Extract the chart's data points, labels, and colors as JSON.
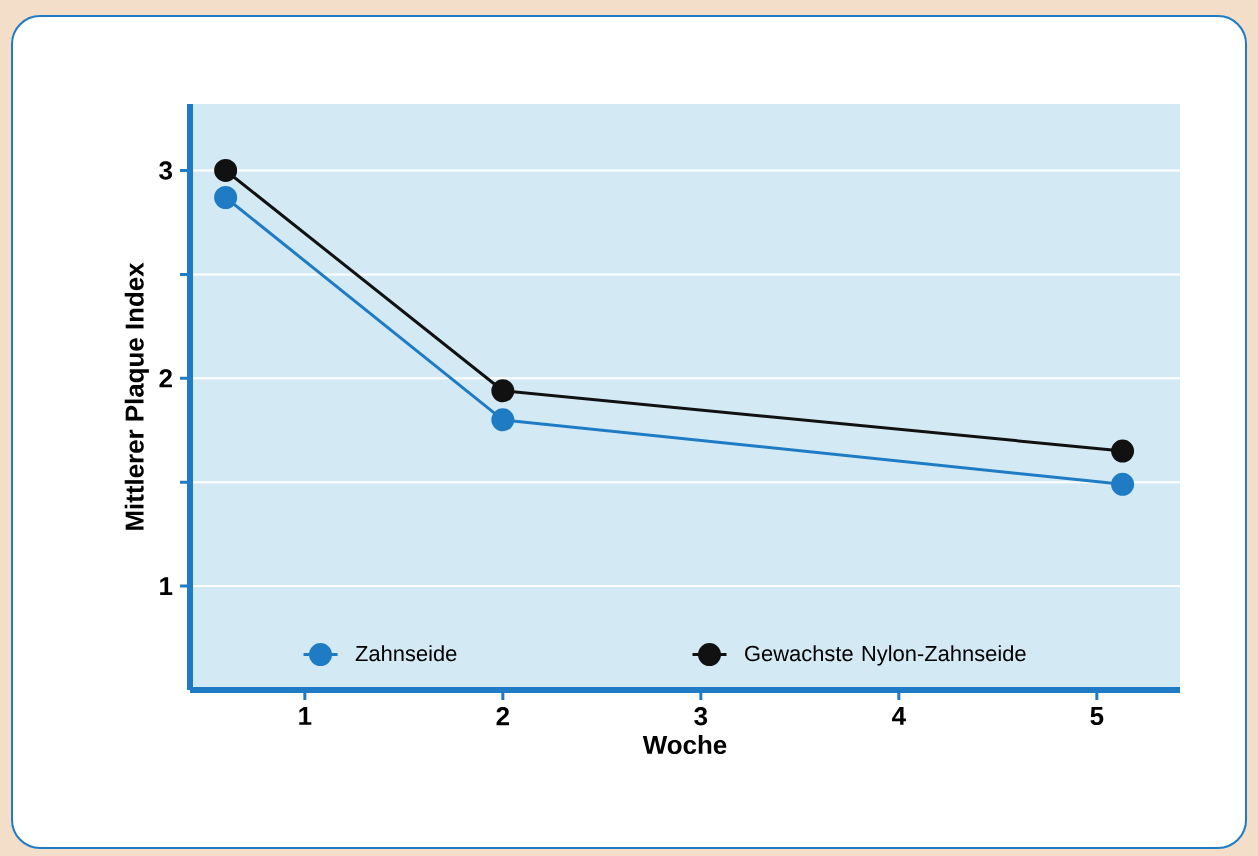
{
  "chart_data": {
    "type": "line",
    "xlabel": "Woche",
    "ylabel": "Mittlerer Plaque Index",
    "x": [
      0.6,
      2,
      5.13
    ],
    "series": [
      {
        "name": "Zahnseide",
        "color": "#1f7cc4",
        "values": [
          2.87,
          1.8,
          1.49
        ]
      },
      {
        "name": "Gewachste Nylon-Zahnseide",
        "color": "#111111",
        "values": [
          3.0,
          1.94,
          1.65
        ]
      }
    ],
    "xlim": [
      0.42,
      5.42
    ],
    "ylim": [
      0.5,
      3.32
    ],
    "xticks": [
      1,
      2,
      3,
      4,
      5
    ],
    "yticks": [
      1,
      {
        "value": 1.5,
        "label": null
      },
      2,
      {
        "value": 2.5,
        "label": null
      },
      3
    ],
    "grid": "y",
    "legend": "bottom",
    "marker": "circle",
    "line_style": "solid"
  }
}
